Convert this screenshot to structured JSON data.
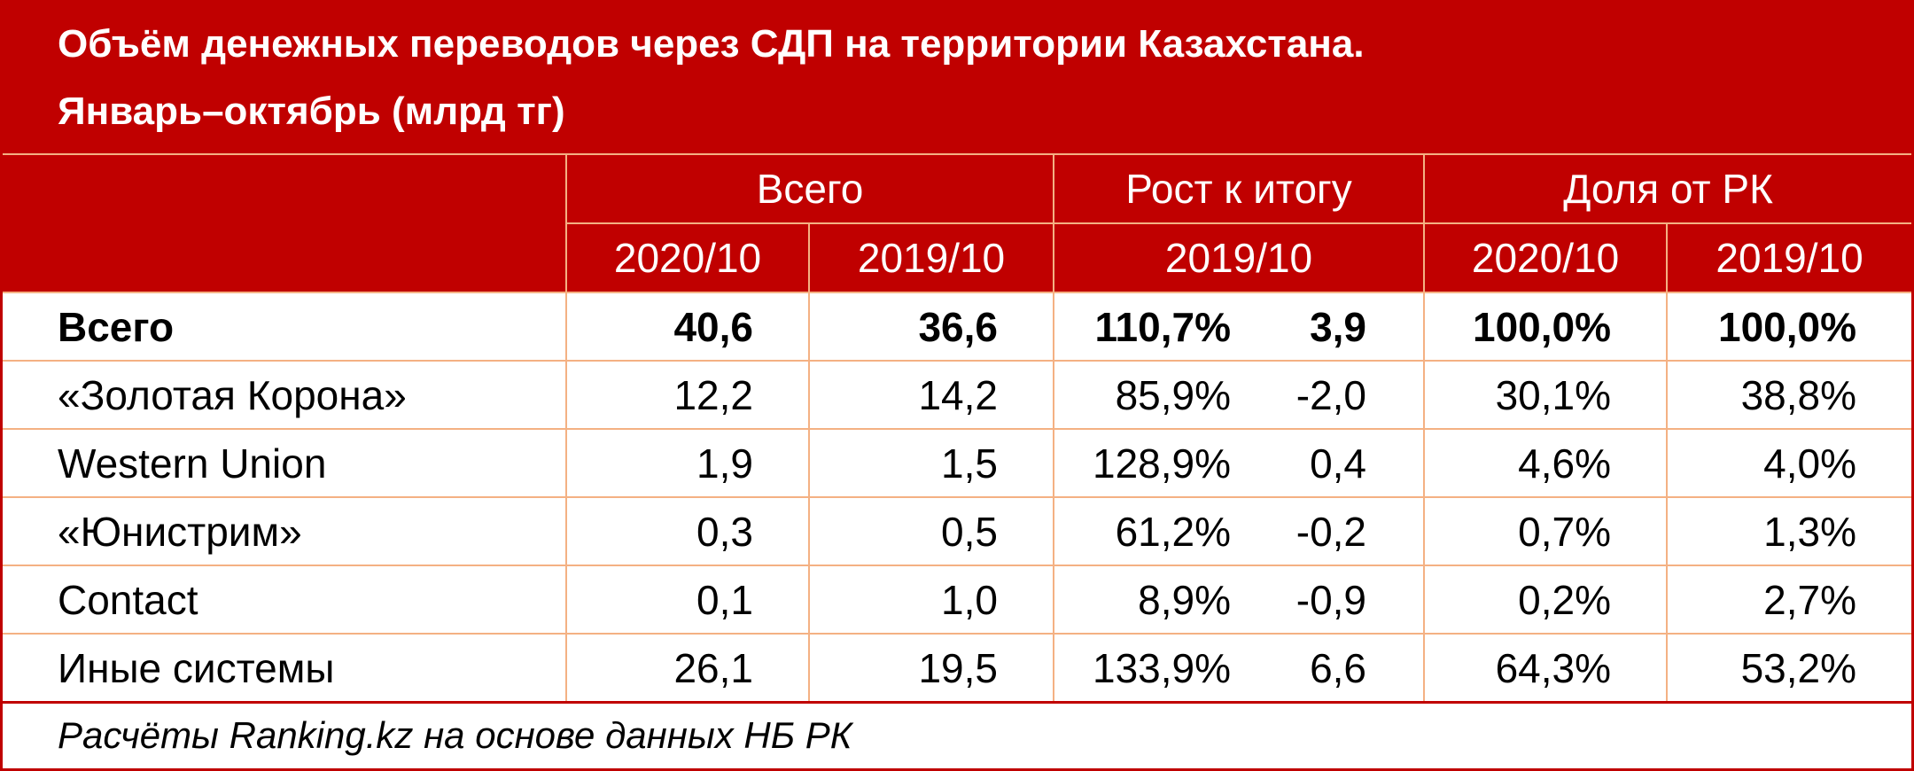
{
  "title": {
    "line1": "Объём денежных переводов через СДП на территории Казахстана.",
    "line2": "Январь–октябрь (млрд тг)"
  },
  "header": {
    "groups": [
      "Всего",
      "Рост к итогу",
      "Доля от РК"
    ],
    "sub": [
      "2020/10",
      "2019/10",
      "2019/10",
      "2020/10",
      "2019/10"
    ]
  },
  "rows": [
    {
      "name": "Всего",
      "total_2020": "40,6",
      "total_2019": "36,6",
      "growth_pct": "110,7%",
      "growth_abs": "3,9",
      "share_2020": "100,0%",
      "share_2019": "100,0%"
    },
    {
      "name": "«Золотая Корона»",
      "total_2020": "12,2",
      "total_2019": "14,2",
      "growth_pct": "85,9%",
      "growth_abs": "-2,0",
      "share_2020": "30,1%",
      "share_2019": "38,8%"
    },
    {
      "name": "Western Union",
      "total_2020": "1,9",
      "total_2019": "1,5",
      "growth_pct": "128,9%",
      "growth_abs": "0,4",
      "share_2020": "4,6%",
      "share_2019": "4,0%"
    },
    {
      "name": "«Юнистрим»",
      "total_2020": "0,3",
      "total_2019": "0,5",
      "growth_pct": "61,2%",
      "growth_abs": "-0,2",
      "share_2020": "0,7%",
      "share_2019": "1,3%"
    },
    {
      "name": "Contact",
      "total_2020": "0,1",
      "total_2019": "1,0",
      "growth_pct": "8,9%",
      "growth_abs": "-0,9",
      "share_2020": "0,2%",
      "share_2019": "2,7%"
    },
    {
      "name": "Иные системы",
      "total_2020": "26,1",
      "total_2019": "19,5",
      "growth_pct": "133,9%",
      "growth_abs": "6,6",
      "share_2020": "64,3%",
      "share_2019": "53,2%"
    }
  ],
  "footer": "Расчёты Ranking.kz на основе данных НБ РК",
  "colors": {
    "header_bg": "#c00000",
    "grid_line": "#f4b183",
    "header_text": "#ffffff"
  }
}
